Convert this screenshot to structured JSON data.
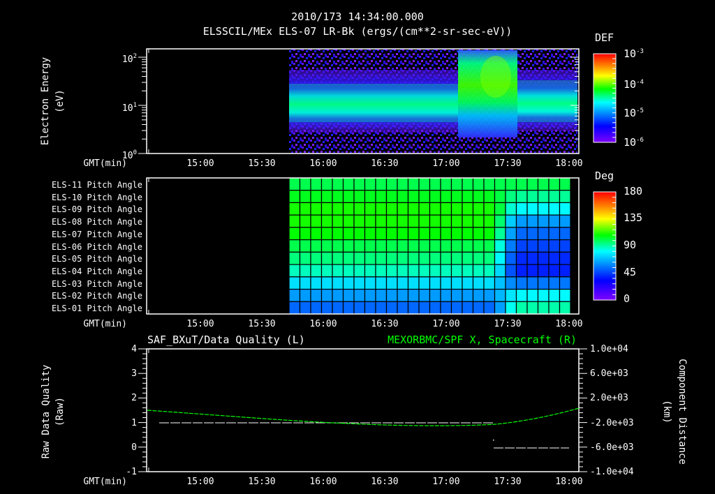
{
  "header": {
    "timestamp": "2010/173 14:34:00.000",
    "subtitle": "ELSSCIL/MEx ELS-07 LR-Bk  (ergs/(cm**2-sr-sec-eV))"
  },
  "panel1": {
    "ylabel_line1": "Electron Energy",
    "ylabel_line2": "(eV)",
    "yticks": [
      "10",
      "10",
      "10"
    ],
    "yticks_exp": [
      "2",
      "1",
      "0"
    ],
    "xlabel": "GMT(min)",
    "colorbar": {
      "title": "DEF",
      "labels": [
        "10",
        "10",
        "10",
        "10"
      ],
      "exps": [
        "-3",
        "-4",
        "-5",
        "-6"
      ]
    }
  },
  "panel2": {
    "rows": [
      "ELS-11 Pitch Angle",
      "ELS-10 Pitch Angle",
      "ELS-09 Pitch Angle",
      "ELS-08 Pitch Angle",
      "ELS-07 Pitch Angle",
      "ELS-06 Pitch Angle",
      "ELS-05 Pitch Angle",
      "ELS-04 Pitch Angle",
      "ELS-03 Pitch Angle",
      "ELS-02 Pitch Angle",
      "ELS-01 Pitch Angle"
    ],
    "xlabel": "GMT(min)",
    "colorbar": {
      "title": "Deg",
      "labels": [
        "180",
        "135",
        "90",
        "45",
        "0"
      ]
    }
  },
  "panel3": {
    "left_title": "SAF_BXuT/Data Quality (L)",
    "right_title": "MEXORBMC/SPF X, Spacecraft (R)",
    "ylabel_left_line1": "Raw Data Quality",
    "ylabel_left_line2": "(Raw)",
    "ylabel_right_line1": "Component Distance",
    "ylabel_right_line2": "(km)",
    "yticks_left": [
      "4",
      "3",
      "2",
      "1",
      "0",
      "-1"
    ],
    "yticks_right": [
      "1.0e+04",
      "6.0e+03",
      "2.0e+03",
      "-2.0e+03",
      "-6.0e+03",
      "-1.0e+04"
    ],
    "xlabel": "GMT(min)"
  },
  "xticks": [
    "15:00",
    "15:30",
    "16:00",
    "16:30",
    "17:00",
    "17:30",
    "18:00"
  ],
  "colors": {
    "background": "#000000",
    "axes": "#ffffff",
    "spacecraft_line": "#00ff00",
    "quality_line": "#ffffff"
  },
  "chart_data": [
    {
      "type": "heatmap",
      "title": "ELSSCIL/MEx ELS-07 LR-Bk (ergs/(cm**2-sr-sec-eV))",
      "xlabel": "GMT(min)",
      "ylabel": "Electron Energy (eV)",
      "yscale": "log",
      "ylim": [
        1,
        150
      ],
      "xlim": [
        "14:34",
        "18:05"
      ],
      "x_ticks": [
        "15:00",
        "15:30",
        "16:00",
        "16:30",
        "17:00",
        "17:30",
        "18:00"
      ],
      "data_start": "15:44",
      "colorbar": {
        "label": "DEF",
        "scale": "log",
        "range": [
          1e-06,
          0.001
        ]
      },
      "description": "Persistent band ~4-30 eV at ~1e-5 to 3e-5 DEF from 15:44 to 17:05; broadband enhancement up to ~100 eV (~1e-4) from ~17:05 to 17:27; band shifts to ~4-50 eV after 17:27"
    },
    {
      "type": "heatmap",
      "title": "ELS Pitch Angles",
      "xlabel": "GMT(min)",
      "categories": [
        "ELS-11",
        "ELS-10",
        "ELS-09",
        "ELS-08",
        "ELS-07",
        "ELS-06",
        "ELS-05",
        "ELS-04",
        "ELS-03",
        "ELS-02",
        "ELS-01"
      ],
      "colorbar": {
        "label": "Deg",
        "range": [
          0,
          180
        ],
        "ticks": [
          0,
          45,
          90,
          135,
          180
        ]
      },
      "values_before_1725": [
        100,
        105,
        110,
        110,
        108,
        100,
        95,
        88,
        75,
        62,
        52
      ],
      "values_after_1730": [
        100,
        92,
        80,
        62,
        52,
        45,
        40,
        38,
        55,
        80,
        90
      ]
    },
    {
      "type": "line",
      "xlabel": "GMT(min)",
      "series": [
        {
          "name": "SAF_BXuT/Data Quality (L)",
          "axis": "left",
          "ylim": [
            -1,
            4
          ],
          "points": [
            [
              "14:43",
              1
            ],
            [
              "17:23",
              1
            ],
            [
              "17:24",
              0
            ],
            [
              "18:00",
              0
            ]
          ]
        },
        {
          "name": "MEXORBMC/SPF X, Spacecraft (R)",
          "axis": "right",
          "ylim": [
            -10000,
            10000
          ],
          "unit": "km",
          "points": [
            [
              "14:34",
              1500
            ],
            [
              "15:00",
              800
            ],
            [
              "15:30",
              0
            ],
            [
              "16:00",
              -900
            ],
            [
              "16:30",
              -1500
            ],
            [
              "17:00",
              -1700
            ],
            [
              "17:24",
              -1600
            ],
            [
              "17:30",
              -1200
            ],
            [
              "17:45",
              200
            ],
            [
              "18:05",
              2000
            ]
          ]
        }
      ]
    }
  ]
}
